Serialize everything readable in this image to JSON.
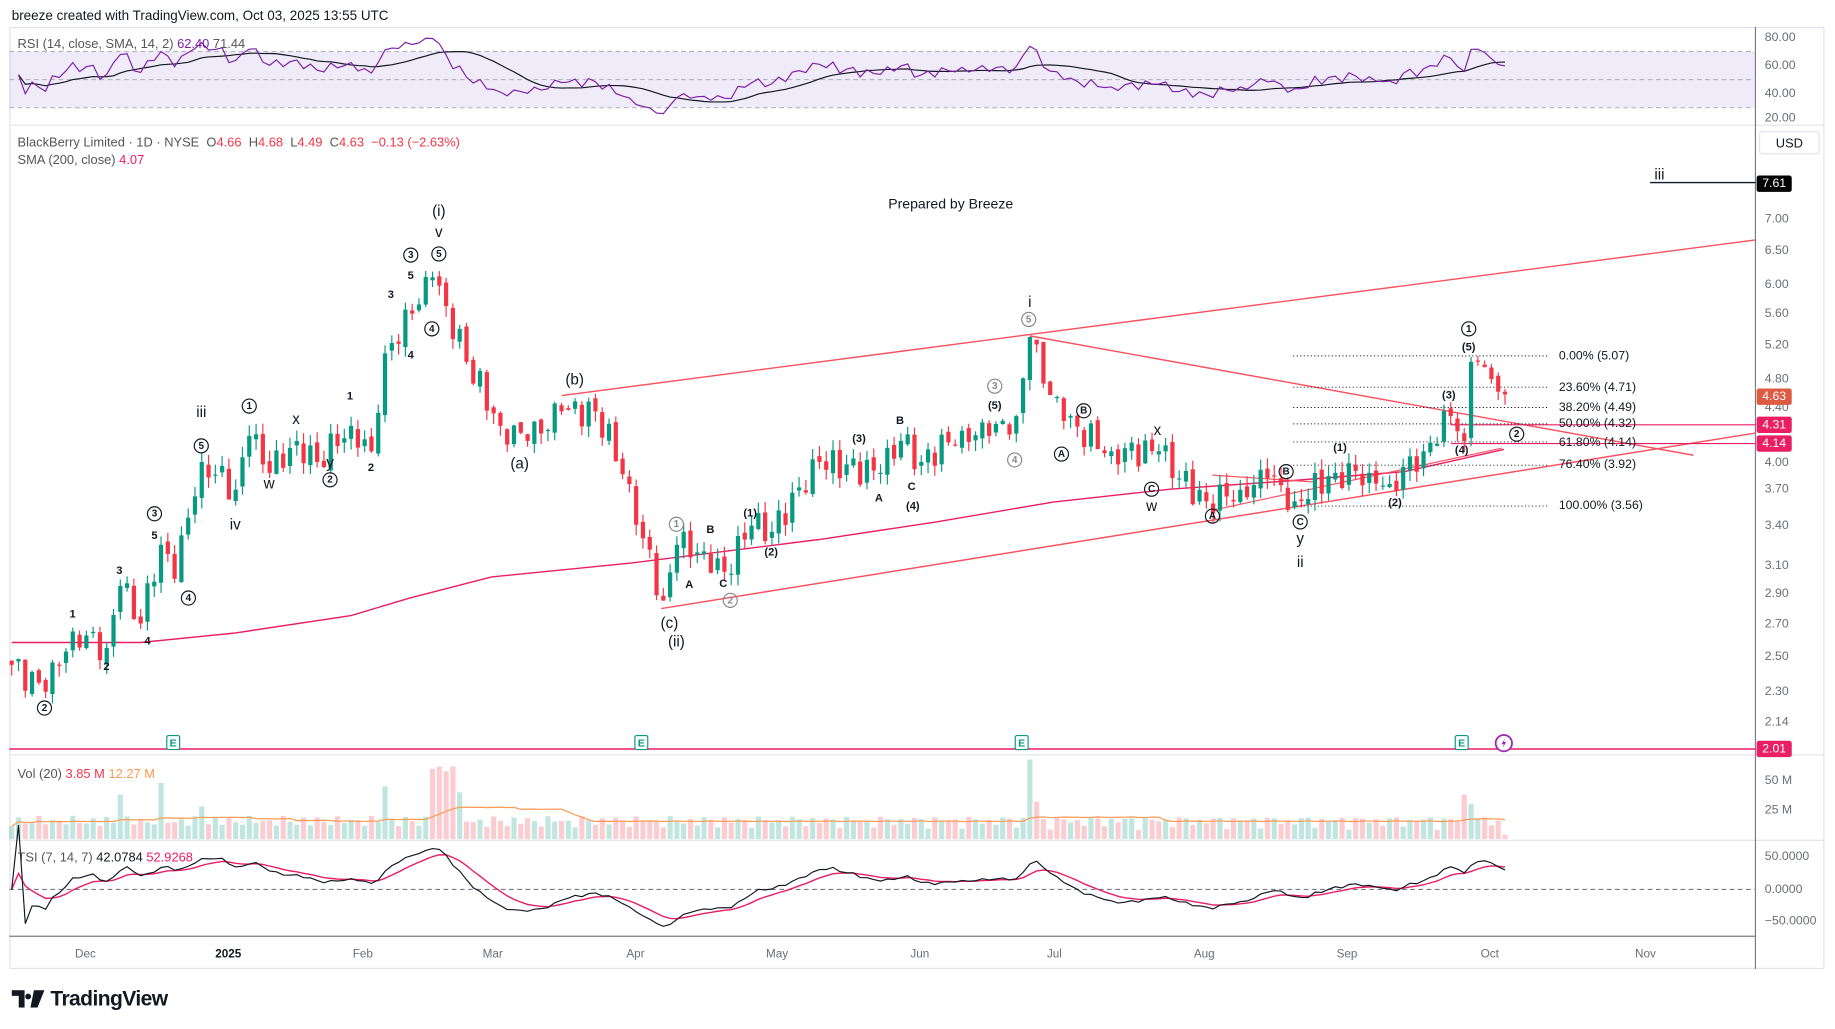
{
  "header": {
    "attribution": "breeze created with TradingView.com, Oct 03, 2025 13:55 UTC"
  },
  "rsi": {
    "label": "RSI (14, close, SMA, 14, 2)",
    "value": "62.40",
    "sma_value": "71.44",
    "axis": [
      "80.00",
      "60.00",
      "40.00",
      "20.00"
    ]
  },
  "symbol": {
    "name": "BlackBerry Limited · 1D · NYSE",
    "o_label": "O",
    "o": "4.66",
    "h_label": "H",
    "h": "4.68",
    "l_label": "L",
    "l": "4.49",
    "c_label": "C",
    "c": "4.63",
    "change": "−0.13 (−2.63%)",
    "sma_label": "SMA (200, close)",
    "sma_value": "4.07"
  },
  "annotation": "Prepared by Breeze",
  "currency_button": "USD",
  "price_axis": [
    "7.00",
    "6.50",
    "6.00",
    "5.60",
    "5.20",
    "4.80",
    "4.40",
    "4.00",
    "3.70",
    "3.40",
    "3.10",
    "2.90",
    "2.70",
    "2.50",
    "2.30",
    "2.14"
  ],
  "badges": {
    "target": "7.61",
    "last": "4.63",
    "level1": "4.31",
    "level2": "4.14",
    "low": "2.01"
  },
  "fib_levels": [
    {
      "label": "0.00% (5.07)",
      "price": 5.07
    },
    {
      "label": "23.60% (4.71)",
      "price": 4.71
    },
    {
      "label": "38.20% (4.49)",
      "price": 4.49
    },
    {
      "label": "50.00% (4.32)",
      "price": 4.32
    },
    {
      "label": "61.80% (4.14)",
      "price": 4.14
    },
    {
      "label": "76.40% (3.92)",
      "price": 3.92
    },
    {
      "label": "100.00% (3.56)",
      "price": 3.56
    }
  ],
  "wave_labels": [
    {
      "t": "2",
      "s": "c"
    },
    {
      "t": "1",
      "s": "bold"
    },
    {
      "t": "2",
      "s": "bold"
    },
    {
      "t": "3",
      "s": "bold"
    },
    {
      "t": "4",
      "s": "bold"
    },
    {
      "t": "5",
      "s": "bold"
    },
    {
      "t": "3",
      "s": "c"
    },
    {
      "t": "4",
      "s": "c"
    },
    {
      "t": "5",
      "s": "c"
    },
    {
      "t": "iii",
      "s": "big"
    },
    {
      "t": "iv",
      "s": "big"
    },
    {
      "t": "1",
      "s": "c"
    },
    {
      "t": "w",
      "s": "big"
    },
    {
      "t": "x",
      "s": "big"
    },
    {
      "t": "y",
      "s": "big"
    },
    {
      "t": "2",
      "s": "c"
    },
    {
      "t": "1",
      "s": "bold"
    },
    {
      "t": "2",
      "s": "bold"
    },
    {
      "t": "3",
      "s": "bold"
    },
    {
      "t": "4",
      "s": "bold"
    },
    {
      "t": "5",
      "s": "bold"
    },
    {
      "t": "3",
      "s": "c"
    },
    {
      "t": "4",
      "s": "c"
    },
    {
      "t": "5",
      "s": "c"
    },
    {
      "t": "v",
      "s": "big"
    },
    {
      "t": "(i)",
      "s": "big"
    },
    {
      "t": "(a)",
      "s": "big"
    },
    {
      "t": "(b)",
      "s": "big"
    },
    {
      "t": "1",
      "s": "c g"
    },
    {
      "t": "A",
      "s": "bold"
    },
    {
      "t": "B",
      "s": "bold"
    },
    {
      "t": "C",
      "s": "bold"
    },
    {
      "t": "2",
      "s": "c g"
    },
    {
      "t": "(c)",
      "s": "big"
    },
    {
      "t": "(ii)",
      "s": "big"
    },
    {
      "t": "(1)",
      "s": "bold"
    },
    {
      "t": "(2)",
      "s": "bold"
    },
    {
      "t": "(3)",
      "s": "bold"
    },
    {
      "t": "A",
      "s": "bold"
    },
    {
      "t": "B",
      "s": "bold"
    },
    {
      "t": "C",
      "s": "bold"
    },
    {
      "t": "(4)",
      "s": "bold"
    },
    {
      "t": "3",
      "s": "c g"
    },
    {
      "t": "(5)",
      "s": "bold"
    },
    {
      "t": "4",
      "s": "c g"
    },
    {
      "t": "i",
      "s": "big"
    },
    {
      "t": "5",
      "s": "c g"
    },
    {
      "t": "A",
      "s": "c"
    },
    {
      "t": "B",
      "s": "c"
    },
    {
      "t": "x",
      "s": "big"
    },
    {
      "t": "C",
      "s": "c"
    },
    {
      "t": "w",
      "s": "big"
    },
    {
      "t": "A",
      "s": "c"
    },
    {
      "t": "B",
      "s": "c"
    },
    {
      "t": "(1)",
      "s": "bold"
    },
    {
      "t": "C",
      "s": "c"
    },
    {
      "t": "y",
      "s": "big"
    },
    {
      "t": "ii",
      "s": "big"
    },
    {
      "t": "(2)",
      "s": "bold"
    },
    {
      "t": "(3)",
      "s": "bold"
    },
    {
      "t": "(4)",
      "s": "bold"
    },
    {
      "t": "1",
      "s": "c"
    },
    {
      "t": "(5)",
      "s": "bold"
    },
    {
      "t": "2",
      "s": "c"
    },
    {
      "t": "iii",
      "s": "big"
    }
  ],
  "earnings_marker": "E",
  "volume": {
    "label": "Vol (20)",
    "value": "3.85 M",
    "ma_value": "12.27 M",
    "axis": [
      "50 M",
      "25 M"
    ]
  },
  "tsi": {
    "label": "TSI (7, 14, 7)",
    "value": "42.0784",
    "signal": "52.9268",
    "axis": [
      "50.0000",
      "0.0000",
      "−50.0000"
    ]
  },
  "time_axis": [
    "Dec",
    "2025",
    "Feb",
    "Mar",
    "Apr",
    "May",
    "Jun",
    "Jul",
    "Aug",
    "Sep",
    "Oct",
    "Nov"
  ],
  "footer_logo": "TradingView",
  "colors": {
    "up": "#089981",
    "down": "#f23645",
    "sma": "#e91e63",
    "rsi": "#7e1fa8",
    "trend": "#f7525f",
    "vol_ma": "#ff9850"
  },
  "chart_data": {
    "type": "candlestick",
    "title": "BlackBerry Limited · 1D · NYSE",
    "price_scale": "log",
    "price_waypoints": [
      [
        0,
        2.45
      ],
      [
        5,
        2.3
      ],
      [
        9,
        2.65
      ],
      [
        14,
        2.55
      ],
      [
        16,
        2.95
      ],
      [
        19,
        2.7
      ],
      [
        22,
        3.25
      ],
      [
        24,
        3.0
      ],
      [
        28,
        3.95
      ],
      [
        33,
        3.7
      ],
      [
        35,
        4.2
      ],
      [
        38,
        3.85
      ],
      [
        42,
        4.15
      ],
      [
        45,
        3.95
      ],
      [
        50,
        4.3
      ],
      [
        53,
        4.05
      ],
      [
        55,
        5.1
      ],
      [
        59,
        5.6
      ],
      [
        62,
        6.1
      ],
      [
        64,
        5.7
      ],
      [
        67,
        5.0
      ],
      [
        72,
        4.3
      ],
      [
        76,
        4.15
      ],
      [
        81,
        4.45
      ],
      [
        86,
        4.45
      ],
      [
        91,
        3.75
      ],
      [
        93,
        3.3
      ],
      [
        96,
        2.85
      ],
      [
        98,
        3.25
      ],
      [
        102,
        3.2
      ],
      [
        105,
        3.05
      ],
      [
        109,
        3.4
      ],
      [
        112,
        3.35
      ],
      [
        119,
        3.95
      ],
      [
        128,
        3.85
      ],
      [
        131,
        4.15
      ],
      [
        134,
        3.95
      ],
      [
        140,
        4.25
      ],
      [
        144,
        4.2
      ],
      [
        148,
        4.4
      ],
      [
        150,
        5.3
      ],
      [
        152,
        4.75
      ],
      [
        155,
        4.35
      ],
      [
        162,
        4.05
      ],
      [
        169,
        4.05
      ],
      [
        172,
        3.8
      ],
      [
        176,
        3.6
      ],
      [
        181,
        3.7
      ],
      [
        185,
        3.8
      ],
      [
        189,
        3.6
      ],
      [
        195,
        3.85
      ],
      [
        200,
        3.85
      ],
      [
        203,
        3.75
      ],
      [
        208,
        4.05
      ],
      [
        212,
        4.4
      ],
      [
        214,
        4.15
      ],
      [
        215,
        5.0
      ],
      [
        218,
        4.8
      ],
      [
        219,
        4.66
      ],
      [
        220,
        4.63
      ]
    ],
    "volume_spikes_m": [
      [
        16,
        38
      ],
      [
        22,
        48
      ],
      [
        28,
        28
      ],
      [
        55,
        45
      ],
      [
        62,
        60
      ],
      [
        63,
        62
      ],
      [
        64,
        58
      ],
      [
        65,
        62
      ],
      [
        66,
        40
      ],
      [
        150,
        68
      ],
      [
        151,
        32
      ],
      [
        214,
        38
      ],
      [
        215,
        30
      ]
    ]
  }
}
